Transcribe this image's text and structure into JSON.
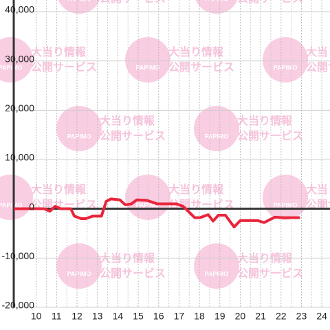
{
  "chart_data": {
    "type": "line",
    "watermark": {
      "logo": "PAPIMO",
      "line1": "大当り情報",
      "line2": "公開サービス"
    },
    "x": [
      8.9,
      10.4,
      10.67,
      10.93,
      11.2,
      11.7,
      11.87,
      12.2,
      12.43,
      12.77,
      13.2,
      13.43,
      13.67,
      14.1,
      14.37,
      14.67,
      14.93,
      15.43,
      15.93,
      16.87,
      17.2,
      17.77,
      18.03,
      18.43,
      18.67,
      18.93,
      19.27,
      19.7,
      20.0,
      20.87,
      21.17,
      21.7,
      22.1,
      22.93
    ],
    "series": [
      {
        "color": "#e8253a",
        "values": [
          0,
          0,
          -500,
          500,
          0,
          0,
          -1500,
          -2000,
          -2000,
          -1500,
          -1500,
          1500,
          2000,
          1800,
          800,
          1000,
          1800,
          1700,
          1000,
          1000,
          500,
          -1800,
          -1800,
          -1200,
          -2500,
          -1300,
          -1300,
          -3700,
          -2400,
          -2400,
          -2800,
          -1700,
          -1800,
          -1800
        ]
      }
    ],
    "xlim": [
      8.9,
      24.4
    ],
    "ylim": [
      -20000,
      40000
    ],
    "xticks": [
      10,
      11,
      12,
      13,
      14,
      15,
      16,
      17,
      18,
      19,
      20,
      21,
      22,
      23,
      24
    ],
    "yticks": [
      {
        "value": -20000,
        "label": "-20,000"
      },
      {
        "value": -10000,
        "label": "-10,000"
      },
      0,
      {
        "value": 10000,
        "label": "10,000"
      },
      {
        "value": 20000,
        "label": "20,000"
      },
      {
        "value": 30000,
        "label": "30,000"
      },
      {
        "value": 40000,
        "label": "40,000"
      }
    ],
    "grid": true
  }
}
